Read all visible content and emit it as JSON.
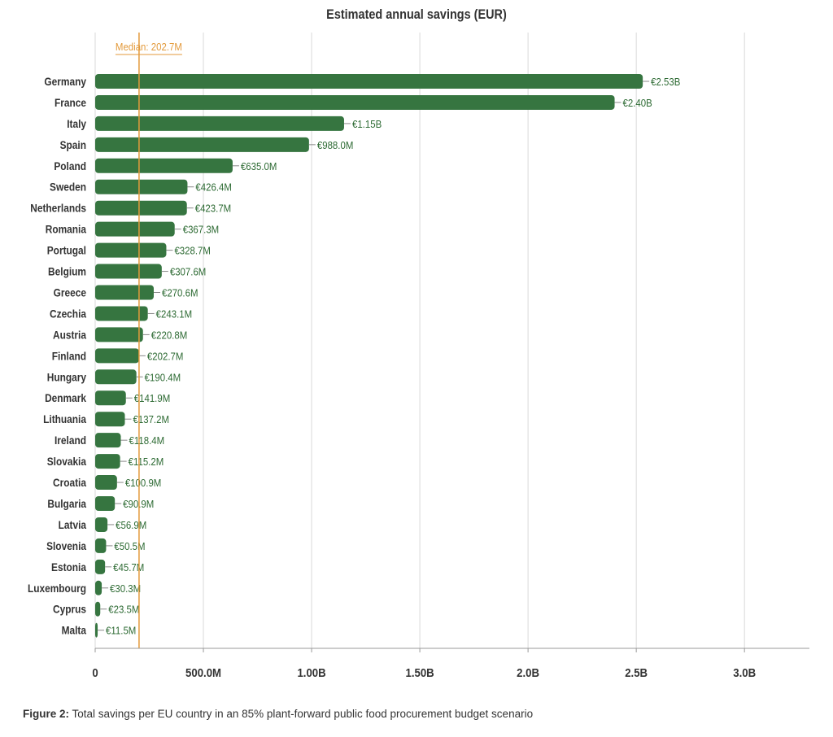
{
  "chart_data": {
    "type": "bar",
    "orientation": "horizontal",
    "title": "Estimated annual savings (EUR)",
    "xlabel": "",
    "ylabel": "",
    "categories": [
      "Germany",
      "France",
      "Italy",
      "Spain",
      "Poland",
      "Sweden",
      "Netherlands",
      "Romania",
      "Portugal",
      "Belgium",
      "Greece",
      "Czechia",
      "Austria",
      "Finland",
      "Hungary",
      "Denmark",
      "Lithuania",
      "Ireland",
      "Slovakia",
      "Croatia",
      "Bulgaria",
      "Latvia",
      "Slovenia",
      "Estonia",
      "Luxembourg",
      "Cyprus",
      "Malta"
    ],
    "values": [
      2530000000,
      2400000000,
      1150000000,
      988000000,
      635000000,
      426400000,
      423700000,
      367300000,
      328700000,
      307600000,
      270600000,
      243100000,
      220800000,
      202700000,
      190400000,
      141900000,
      137200000,
      118400000,
      115200000,
      100900000,
      90900000,
      56900000,
      50500000,
      45700000,
      30300000,
      23500000,
      11500000
    ],
    "value_labels": [
      "€2.53B",
      "€2.40B",
      "€1.15B",
      "€988.0M",
      "€635.0M",
      "€426.4M",
      "€423.7M",
      "€367.3M",
      "€328.7M",
      "€307.6M",
      "€270.6M",
      "€243.1M",
      "€220.8M",
      "€202.7M",
      "€190.4M",
      "€141.9M",
      "€137.2M",
      "€118.4M",
      "€115.2M",
      "€100.9M",
      "€90.9M",
      "€56.9M",
      "€50.5M",
      "€45.7M",
      "€30.3M",
      "€23.5M",
      "€11.5M"
    ],
    "xlim": [
      0,
      3300000000
    ],
    "ticks": [
      0,
      500000000,
      1000000000,
      1500000000,
      2000000000,
      2500000000,
      3000000000
    ],
    "tick_labels": [
      "0",
      "500.0M",
      "1.00B",
      "1.50B",
      "2.0B",
      "2.5B",
      "3.0B"
    ],
    "median": {
      "value": 202700000,
      "label": "Median: 202.7M"
    },
    "grid": true,
    "colors": {
      "bar": "#367540",
      "median": "#e39a3b",
      "value_text": "#2e6b34",
      "grid": "#d9d9d9"
    }
  },
  "caption": {
    "label": "Figure 2:",
    "text": " Total savings per EU country in an 85% plant-forward public food procurement budget scenario"
  }
}
